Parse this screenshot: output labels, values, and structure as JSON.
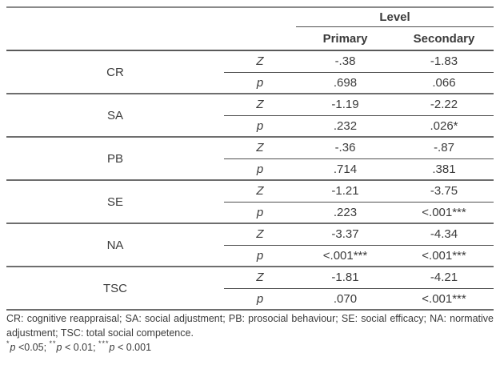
{
  "table": {
    "header": {
      "level": "Level",
      "primary": "Primary",
      "secondary": "Secondary"
    },
    "stat_labels": {
      "z": "Z",
      "p": "p"
    },
    "groups": [
      {
        "label": "CR",
        "z_primary": "-.38",
        "z_secondary": "-1.83",
        "p_primary": ".698",
        "p_secondary": ".066"
      },
      {
        "label": "SA",
        "z_primary": "-1.19",
        "z_secondary": "-2.22",
        "p_primary": ".232",
        "p_secondary": ".026*"
      },
      {
        "label": "PB",
        "z_primary": "-.36",
        "z_secondary": "-.87",
        "p_primary": ".714",
        "p_secondary": ".381"
      },
      {
        "label": "SE",
        "z_primary": "-1.21",
        "z_secondary": "-3.75",
        "p_primary": ".223",
        "p_secondary": "<.001***"
      },
      {
        "label": "NA",
        "z_primary": "-3.37",
        "z_secondary": "-4.34",
        "p_primary": "<.001***",
        "p_secondary": "<.001***"
      },
      {
        "label": "TSC",
        "z_primary": "-1.81",
        "z_secondary": "-4.21",
        "p_primary": ".070",
        "p_secondary": "<.001***"
      }
    ]
  },
  "footnote": {
    "abbreviations": "CR: cognitive reappraisal; SA: social adjustment; PB: prosocial behaviour; SE: social efficacy; NA: normative adjustment; TSC: total social competence.",
    "significance": [
      {
        "star": "*",
        "p": "p",
        "rest": " <0.05; "
      },
      {
        "star": "**",
        "p": "p",
        "rest": " < 0.01; "
      },
      {
        "star": "***",
        "p": "p",
        "rest": " < 0.001"
      }
    ]
  }
}
